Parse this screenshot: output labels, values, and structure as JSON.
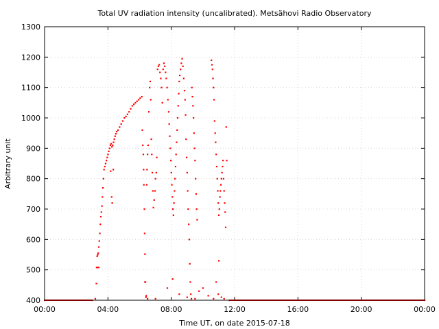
{
  "chart_data": {
    "type": "scatter",
    "title": "Total UV radiation intensity (uncalibrated). Metsähovi Radio Observatory",
    "xlabel": "Time UT, on date 2015-07-18",
    "ylabel": "Arbitrary unit",
    "xlim": [
      "00:00",
      "24:00"
    ],
    "ylim": [
      400,
      1300
    ],
    "x_ticks": [
      "00:00",
      "04:00",
      "08:00",
      "12:00",
      "16:00",
      "20:00",
      "00:00"
    ],
    "y_ticks": [
      "400",
      "500",
      "600",
      "700",
      "800",
      "900",
      "1000",
      "1100",
      "1200",
      "1300"
    ],
    "grid": true,
    "marker_color": "#ff0000",
    "series": [
      {
        "points": [
          [
            "00:00",
            400
          ],
          [
            "03:00",
            400
          ],
          [
            "03:12",
            405
          ],
          [
            "03:16",
            455
          ],
          [
            "03:17",
            508
          ],
          [
            "03:19",
            545
          ],
          [
            "03:21",
            550
          ],
          [
            "03:23",
            555
          ],
          [
            "03:25",
            575
          ],
          [
            "03:27",
            595
          ],
          [
            "03:29",
            620
          ],
          [
            "03:31",
            650
          ],
          [
            "03:33",
            675
          ],
          [
            "03:35",
            690
          ],
          [
            "03:37",
            710
          ],
          [
            "03:39",
            740
          ],
          [
            "03:41",
            770
          ],
          [
            "03:43",
            800
          ],
          [
            "03:45",
            830
          ],
          [
            "03:48",
            840
          ],
          [
            "03:51",
            850
          ],
          [
            "03:54",
            860
          ],
          [
            "03:57",
            870
          ],
          [
            "04:00",
            880
          ],
          [
            "04:03",
            890
          ],
          [
            "04:06",
            900
          ],
          [
            "04:09",
            910
          ],
          [
            "04:12",
            915
          ],
          [
            "04:15",
            905
          ],
          [
            "04:18",
            910
          ],
          [
            "04:21",
            920
          ],
          [
            "04:24",
            930
          ],
          [
            "04:27",
            940
          ],
          [
            "04:30",
            948
          ],
          [
            "04:33",
            955
          ],
          [
            "04:38",
            960
          ],
          [
            "04:44",
            970
          ],
          [
            "04:50",
            980
          ],
          [
            "04:56",
            990
          ],
          [
            "05:02",
            1000
          ],
          [
            "05:08",
            1005
          ],
          [
            "05:14",
            1012
          ],
          [
            "05:20",
            1020
          ],
          [
            "05:26",
            1030
          ],
          [
            "05:32",
            1040
          ],
          [
            "05:38",
            1045
          ],
          [
            "05:44",
            1050
          ],
          [
            "05:50",
            1055
          ],
          [
            "05:56",
            1060
          ],
          [
            "06:02",
            1065
          ],
          [
            "06:08",
            1070
          ],
          [
            "04:10",
            825
          ],
          [
            "04:14",
            740
          ],
          [
            "04:16",
            720
          ],
          [
            "04:20",
            830
          ],
          [
            "03:20",
            508
          ],
          [
            "03:25",
            508
          ],
          [
            "06:10",
            960
          ],
          [
            "06:12",
            910
          ],
          [
            "06:14",
            880
          ],
          [
            "06:15",
            830
          ],
          [
            "06:16",
            780
          ],
          [
            "06:18",
            700
          ],
          [
            "06:19",
            620
          ],
          [
            "06:20",
            552
          ],
          [
            "06:22",
            460
          ],
          [
            "06:24",
            410
          ],
          [
            "06:27",
            780
          ],
          [
            "06:28",
            830
          ],
          [
            "06:30",
            880
          ],
          [
            "06:32",
            910
          ],
          [
            "06:35",
            1020
          ],
          [
            "06:38",
            1100
          ],
          [
            "06:40",
            1120
          ],
          [
            "06:42",
            1060
          ],
          [
            "06:44",
            930
          ],
          [
            "06:46",
            880
          ],
          [
            "06:48",
            820
          ],
          [
            "06:50",
            760
          ],
          [
            "06:52",
            705
          ],
          [
            "06:55",
            730
          ],
          [
            "06:58",
            760
          ],
          [
            "07:00",
            800
          ],
          [
            "07:03",
            820
          ],
          [
            "07:05",
            870
          ],
          [
            "07:08",
            1160
          ],
          [
            "07:11",
            1170
          ],
          [
            "07:14",
            1175
          ],
          [
            "07:17",
            1150
          ],
          [
            "07:20",
            1130
          ],
          [
            "07:23",
            1100
          ],
          [
            "07:26",
            1050
          ],
          [
            "07:29",
            1160
          ],
          [
            "07:32",
            1180
          ],
          [
            "07:35",
            1170
          ],
          [
            "07:38",
            1150
          ],
          [
            "07:41",
            1130
          ],
          [
            "07:44",
            1100
          ],
          [
            "07:47",
            1060
          ],
          [
            "07:50",
            1020
          ],
          [
            "07:52",
            980
          ],
          [
            "07:54",
            940
          ],
          [
            "07:56",
            900
          ],
          [
            "07:58",
            860
          ],
          [
            "08:00",
            820
          ],
          [
            "08:02",
            780
          ],
          [
            "08:04",
            740
          ],
          [
            "08:06",
            700
          ],
          [
            "08:08",
            680
          ],
          [
            "08:10",
            720
          ],
          [
            "08:12",
            760
          ],
          [
            "08:14",
            800
          ],
          [
            "08:16",
            840
          ],
          [
            "08:18",
            880
          ],
          [
            "08:20",
            920
          ],
          [
            "08:22",
            960
          ],
          [
            "08:24",
            1000
          ],
          [
            "08:26",
            1040
          ],
          [
            "08:28",
            1080
          ],
          [
            "08:30",
            1120
          ],
          [
            "08:32",
            1140
          ],
          [
            "08:35",
            1160
          ],
          [
            "08:38",
            1180
          ],
          [
            "08:41",
            1195
          ],
          [
            "08:44",
            1170
          ],
          [
            "08:47",
            1130
          ],
          [
            "08:50",
            1090
          ],
          [
            "08:52",
            1060
          ],
          [
            "08:54",
            1010
          ],
          [
            "08:56",
            930
          ],
          [
            "08:58",
            870
          ],
          [
            "09:00",
            820
          ],
          [
            "09:02",
            760
          ],
          [
            "09:04",
            700
          ],
          [
            "09:06",
            650
          ],
          [
            "09:08",
            600
          ],
          [
            "09:10",
            520
          ],
          [
            "09:12",
            460
          ],
          [
            "09:14",
            420
          ],
          [
            "09:16",
            405
          ],
          [
            "09:18",
            1100
          ],
          [
            "09:20",
            1070
          ],
          [
            "09:22",
            1040
          ],
          [
            "09:24",
            1000
          ],
          [
            "09:26",
            950
          ],
          [
            "09:28",
            900
          ],
          [
            "09:30",
            860
          ],
          [
            "09:32",
            800
          ],
          [
            "09:34",
            750
          ],
          [
            "09:36",
            700
          ],
          [
            "09:38",
            665
          ],
          [
            "06:20",
            460
          ],
          [
            "06:25",
            415
          ],
          [
            "06:30",
            405
          ],
          [
            "07:00",
            405
          ],
          [
            "07:45",
            440
          ],
          [
            "08:05",
            470
          ],
          [
            "08:30",
            420
          ],
          [
            "09:00",
            410
          ],
          [
            "09:30",
            405
          ],
          [
            "09:45",
            430
          ],
          [
            "10:00",
            440
          ],
          [
            "10:20",
            415
          ],
          [
            "10:40",
            405
          ],
          [
            "10:50",
            460
          ],
          [
            "10:32",
            1190
          ],
          [
            "10:34",
            1175
          ],
          [
            "10:36",
            1160
          ],
          [
            "10:38",
            1130
          ],
          [
            "10:40",
            1100
          ],
          [
            "10:42",
            1060
          ],
          [
            "10:44",
            990
          ],
          [
            "10:46",
            950
          ],
          [
            "10:48",
            920
          ],
          [
            "10:50",
            880
          ],
          [
            "10:52",
            840
          ],
          [
            "10:54",
            800
          ],
          [
            "10:56",
            760
          ],
          [
            "10:58",
            720
          ],
          [
            "11:00",
            680
          ],
          [
            "11:02",
            700
          ],
          [
            "11:04",
            740
          ],
          [
            "11:06",
            760
          ],
          [
            "11:08",
            780
          ],
          [
            "11:10",
            800
          ],
          [
            "11:12",
            820
          ],
          [
            "11:14",
            840
          ],
          [
            "11:16",
            860
          ],
          [
            "11:18",
            800
          ],
          [
            "11:20",
            760
          ],
          [
            "11:22",
            720
          ],
          [
            "11:24",
            690
          ],
          [
            "11:26",
            640
          ],
          [
            "11:28",
            970
          ],
          [
            "11:30",
            860
          ],
          [
            "11:00",
            530
          ],
          [
            "10:58",
            420
          ],
          [
            "11:10",
            410
          ],
          [
            "11:20",
            405
          ],
          [
            "11:40",
            400
          ],
          [
            "24:00",
            400
          ]
        ]
      }
    ]
  }
}
